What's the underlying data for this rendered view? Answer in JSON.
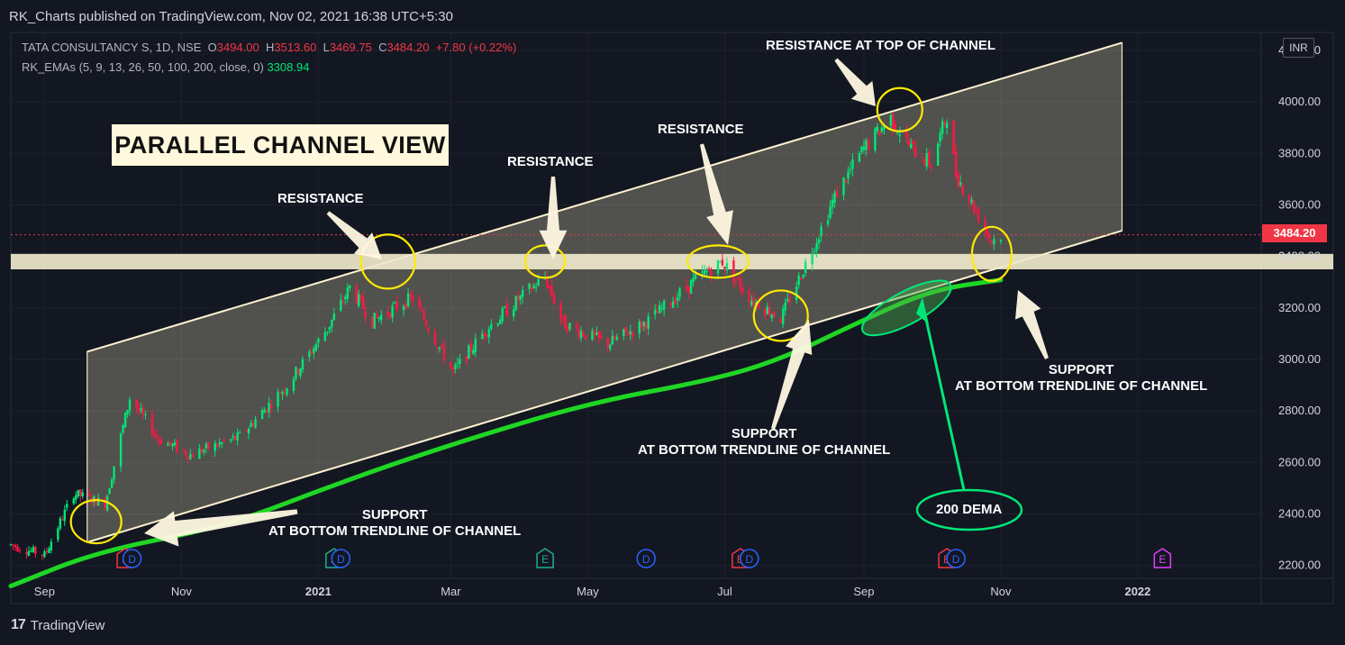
{
  "header": {
    "published": "RK_Charts published on TradingView.com, Nov 02, 2021 16:38 UTC+5:30"
  },
  "legend": {
    "symbol": "TATA CONSULTANCY S, 1D, NSE",
    "o_label": "O",
    "o": "3494.00",
    "h_label": "H",
    "h": "3513.60",
    "l_label": "L",
    "l": "3469.75",
    "c_label": "C",
    "c": "3484.20",
    "change": "+7.80 (+0.22%)",
    "ema_label": "RK_EMAs (5, 9, 13, 26, 50, 100, 200, close, 0)",
    "ema_value": "3308.94"
  },
  "currency": "INR",
  "title_box": "PARALLEL CHANNEL VIEW",
  "annotations": {
    "resistance_top": "RESISTANCE AT TOP OF CHANNEL",
    "resistance_1": "RESISTANCE",
    "resistance_2": "RESISTANCE",
    "resistance_3": "RESISTANCE",
    "support_1_line1": "SUPPORT",
    "support_1_line2": "AT BOTTOM TRENDLINE OF CHANNEL",
    "support_2_line1": "SUPPORT",
    "support_2_line2": "AT BOTTOM TRENDLINE OF CHANNEL",
    "support_3_line1": "SUPPORT",
    "support_3_line2": "AT BOTTOM TRENDLINE OF CHANNEL",
    "dema": "200 DEMA"
  },
  "last_price": "3484.20",
  "events": [
    {
      "x": "2020-10-07",
      "type": "E",
      "color": "#f23645"
    },
    {
      "x": "2020-10-10",
      "type": "D",
      "color": "#2962ff"
    },
    {
      "x": "2021-01-08",
      "type": "E",
      "color": "#22ab94"
    },
    {
      "x": "2021-01-11",
      "type": "D",
      "color": "#2962ff"
    },
    {
      "x": "2021-04-12",
      "type": "E",
      "color": "#22ab94"
    },
    {
      "x": "2021-05-27",
      "type": "D",
      "color": "#2962ff"
    },
    {
      "x": "2021-07-08",
      "type": "E",
      "color": "#f23645"
    },
    {
      "x": "2021-07-12",
      "type": "D",
      "color": "#2962ff"
    },
    {
      "x": "2021-10-08",
      "type": "E",
      "color": "#f23645"
    },
    {
      "x": "2021-10-12",
      "type": "D",
      "color": "#2962ff"
    },
    {
      "x": "2022-01-12",
      "type": "E",
      "color": "#e040fb"
    }
  ],
  "footer": {
    "brand": "TradingView"
  },
  "colors": {
    "up": "#22ab94",
    "down": "#f23645",
    "bright_up": "#00e676",
    "bright_down": "#ff1744",
    "channel_fill": "#f5e9c0",
    "dema": "#1fd624",
    "band": "#efe8cc",
    "highlight": "#ffea00"
  },
  "chart_data": {
    "type": "candlestick",
    "x_axis": {
      "ticks": [
        "Sep",
        "Nov",
        "2021",
        "Mar",
        "May",
        "Jul",
        "Sep",
        "Nov",
        "2022"
      ]
    },
    "y_axis": {
      "ticks": [
        "2200.00",
        "2400.00",
        "2600.00",
        "2800.00",
        "3000.00",
        "3200.00",
        "3400.00",
        "3600.00",
        "3800.00",
        "4000.00",
        "4200.00"
      ],
      "ylim": [
        2150,
        4270
      ]
    },
    "price_path": [
      [
        "2020-08-17",
        2280
      ],
      [
        "2020-09-01",
        2240
      ],
      [
        "2020-09-14",
        2480
      ],
      [
        "2020-09-28",
        2440
      ],
      [
        "2020-10-09",
        2850
      ],
      [
        "2020-10-22",
        2690
      ],
      [
        "2020-11-05",
        2630
      ],
      [
        "2020-11-27",
        2700
      ],
      [
        "2020-12-18",
        2900
      ],
      [
        "2021-01-05",
        3120
      ],
      [
        "2021-01-15",
        3280
      ],
      [
        "2021-01-25",
        3150
      ],
      [
        "2021-02-12",
        3240
      ],
      [
        "2021-03-02",
        2950
      ],
      [
        "2021-03-17",
        3120
      ],
      [
        "2021-04-05",
        3270
      ],
      [
        "2021-04-12",
        3320
      ],
      [
        "2021-04-20",
        3140
      ],
      [
        "2021-05-10",
        3060
      ],
      [
        "2021-05-28",
        3150
      ],
      [
        "2021-06-18",
        3310
      ],
      [
        "2021-06-30",
        3380
      ],
      [
        "2021-07-12",
        3240
      ],
      [
        "2021-07-26",
        3160
      ],
      [
        "2021-08-05",
        3350
      ],
      [
        "2021-08-20",
        3650
      ],
      [
        "2021-09-01",
        3820
      ],
      [
        "2021-09-13",
        3940
      ],
      [
        "2021-09-22",
        3820
      ],
      [
        "2021-10-01",
        3760
      ],
      [
        "2021-10-08",
        3950
      ],
      [
        "2021-10-12",
        3720
      ],
      [
        "2021-10-22",
        3560
      ],
      [
        "2021-10-28",
        3460
      ],
      [
        "2021-11-01",
        3484
      ]
    ],
    "channel": {
      "upper": [
        [
          "2020-09-20",
          3030
        ],
        [
          "2021-12-25",
          4230
        ]
      ],
      "lower": [
        [
          "2020-09-20",
          2290
        ],
        [
          "2021-12-25",
          3500
        ]
      ]
    },
    "support_band": [
      3350,
      3410
    ],
    "dema_200": [
      [
        "2020-08-17",
        2120
      ],
      [
        "2020-09-25",
        2255
      ],
      [
        "2020-11-20",
        2350
      ],
      [
        "2021-01-10",
        2520
      ],
      [
        "2021-03-01",
        2670
      ],
      [
        "2021-05-01",
        2830
      ],
      [
        "2021-06-25",
        2920
      ],
      [
        "2021-07-26",
        3000
      ],
      [
        "2021-08-31",
        3150
      ],
      [
        "2021-10-01",
        3270
      ],
      [
        "2021-11-01",
        3309
      ]
    ],
    "last_value": 3484.2
  }
}
